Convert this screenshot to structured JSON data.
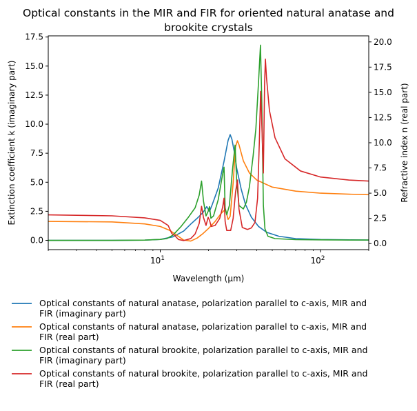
{
  "chart_data": {
    "type": "line",
    "title_lines": [
      "Optical constants in the MIR and FIR for oriented natural anatase and",
      "brookite crystals"
    ],
    "xlabel": "Wavelength (μm)",
    "ylabel_left": "Extinction coefficient k (imaginary part)",
    "ylabel_right": "Refractive index n (real part)",
    "x_scale": "log",
    "xlim": [
      2,
      200
    ],
    "ylim_left": [
      -0.8,
      17.6
    ],
    "ylim_right": [
      -0.6,
      20.6
    ],
    "x_ticks": [
      10,
      100
    ],
    "x_tick_labels": [
      "10^1",
      "10^2"
    ],
    "y_ticks_left": [
      "0.0",
      "2.5",
      "5.0",
      "7.5",
      "10.0",
      "12.5",
      "15.0",
      "17.5"
    ],
    "y_ticks_right": [
      "0.0",
      "2.5",
      "5.0",
      "7.5",
      "10.0",
      "12.5",
      "15.0",
      "17.5",
      "20.0"
    ],
    "grid": false,
    "legend_position": "below-plot",
    "series": [
      {
        "name": "Optical constants of natural anatase, polarization parallel to c-axis, MIR and FIR (imaginary part)",
        "axis": "left",
        "color": "#1f77b4",
        "points": [
          [
            2,
            0.0
          ],
          [
            5,
            0.0
          ],
          [
            8,
            0.02
          ],
          [
            10,
            0.08
          ],
          [
            12,
            0.3
          ],
          [
            14,
            0.8
          ],
          [
            15.5,
            1.4
          ],
          [
            17,
            1.9
          ],
          [
            18.5,
            2.4
          ],
          [
            19.5,
            2.9
          ],
          [
            20.3,
            2.5
          ],
          [
            21,
            3.0
          ],
          [
            23,
            4.5
          ],
          [
            25,
            6.8
          ],
          [
            26.5,
            8.6
          ],
          [
            27.3,
            9.1
          ],
          [
            28,
            8.7
          ],
          [
            29,
            7.6
          ],
          [
            30,
            6.2
          ],
          [
            32,
            4.4
          ],
          [
            34,
            3.1
          ],
          [
            37,
            2.0
          ],
          [
            41,
            1.2
          ],
          [
            46,
            0.7
          ],
          [
            55,
            0.35
          ],
          [
            70,
            0.15
          ],
          [
            100,
            0.07
          ],
          [
            150,
            0.04
          ],
          [
            200,
            0.03
          ]
        ]
      },
      {
        "name": "Optical constants of natural anatase, polarization parallel to c-axis, MIR and FIR (real part)",
        "axis": "right",
        "color": "#ff7f0e",
        "points": [
          [
            2,
            2.2
          ],
          [
            5,
            2.15
          ],
          [
            8,
            1.95
          ],
          [
            10,
            1.7
          ],
          [
            11.5,
            1.3
          ],
          [
            12.5,
            0.9
          ],
          [
            14,
            0.35
          ],
          [
            15.5,
            0.25
          ],
          [
            17,
            0.55
          ],
          [
            18.5,
            1.0
          ],
          [
            20,
            1.5
          ],
          [
            22,
            2.2
          ],
          [
            24,
            3.0
          ],
          [
            25.5,
            3.4
          ],
          [
            26.5,
            2.4
          ],
          [
            27.3,
            2.7
          ],
          [
            28.5,
            6.0
          ],
          [
            29.5,
            9.6
          ],
          [
            30.3,
            10.2
          ],
          [
            31,
            9.8
          ],
          [
            33,
            8.2
          ],
          [
            36,
            7.0
          ],
          [
            40,
            6.3
          ],
          [
            50,
            5.6
          ],
          [
            70,
            5.2
          ],
          [
            100,
            5.0
          ],
          [
            150,
            4.9
          ],
          [
            200,
            4.85
          ]
        ]
      },
      {
        "name": "Optical constants of natural brookite, polarization parallel to c-axis, MIR and FIR (imaginary part)",
        "axis": "left",
        "color": "#2ca02c",
        "points": [
          [
            2,
            0.0
          ],
          [
            5,
            0.0
          ],
          [
            8,
            0.02
          ],
          [
            10,
            0.08
          ],
          [
            11,
            0.15
          ],
          [
            12,
            0.45
          ],
          [
            13.5,
            1.2
          ],
          [
            15,
            2.0
          ],
          [
            16.5,
            2.8
          ],
          [
            17.5,
            3.9
          ],
          [
            18.1,
            5.1
          ],
          [
            18.6,
            3.4
          ],
          [
            19.3,
            2.1
          ],
          [
            19.9,
            2.5
          ],
          [
            20.3,
            2.9
          ],
          [
            20.7,
            1.9
          ],
          [
            21.5,
            2.1
          ],
          [
            23,
            3.5
          ],
          [
            24.5,
            5.7
          ],
          [
            25,
            6.3
          ],
          [
            25.4,
            2.8
          ],
          [
            26,
            2.2
          ],
          [
            27,
            3.0
          ],
          [
            28.2,
            6.0
          ],
          [
            29.3,
            8.2
          ],
          [
            30,
            5.0
          ],
          [
            31,
            3.0
          ],
          [
            33,
            2.7
          ],
          [
            34.5,
            3.3
          ],
          [
            36,
            4.6
          ],
          [
            38,
            7.3
          ],
          [
            39.5,
            9.6
          ],
          [
            41,
            13.5
          ],
          [
            42.2,
            16.8
          ],
          [
            43,
            12.0
          ],
          [
            44,
            3.0
          ],
          [
            45,
            1.0
          ],
          [
            47,
            0.35
          ],
          [
            52,
            0.15
          ],
          [
            70,
            0.06
          ],
          [
            100,
            0.04
          ],
          [
            150,
            0.03
          ],
          [
            200,
            0.03
          ]
        ]
      },
      {
        "name": "Optical constants of natural brookite, polarization parallel to c-axis, MIR and FIR (real part)",
        "axis": "right",
        "color": "#d62728",
        "points": [
          [
            2,
            2.85
          ],
          [
            5,
            2.75
          ],
          [
            8,
            2.55
          ],
          [
            10,
            2.3
          ],
          [
            11.2,
            1.8
          ],
          [
            11.8,
            1.0
          ],
          [
            12.3,
            0.8
          ],
          [
            13,
            0.4
          ],
          [
            14,
            0.3
          ],
          [
            15.5,
            0.5
          ],
          [
            16.5,
            0.95
          ],
          [
            17.5,
            2.0
          ],
          [
            18.1,
            3.7
          ],
          [
            18.6,
            2.6
          ],
          [
            19.3,
            1.8
          ],
          [
            19.9,
            2.6
          ],
          [
            20.3,
            2.3
          ],
          [
            20.8,
            1.7
          ],
          [
            22,
            1.8
          ],
          [
            23.5,
            2.5
          ],
          [
            24.5,
            3.6
          ],
          [
            25,
            4.5
          ],
          [
            25.4,
            2.2
          ],
          [
            26,
            1.3
          ],
          [
            27.5,
            1.3
          ],
          [
            28.5,
            2.5
          ],
          [
            29.5,
            5.1
          ],
          [
            30.3,
            6.3
          ],
          [
            31,
            3.4
          ],
          [
            32.5,
            1.6
          ],
          [
            35,
            1.4
          ],
          [
            37,
            1.55
          ],
          [
            39,
            2.1
          ],
          [
            40.5,
            4.5
          ],
          [
            41.5,
            10.0
          ],
          [
            42.3,
            15.1
          ],
          [
            43.2,
            11.0
          ],
          [
            44,
            7.0
          ],
          [
            44.8,
            16.0
          ],
          [
            45.3,
            18.3
          ],
          [
            46,
            16.5
          ],
          [
            48,
            13.2
          ],
          [
            52,
            10.5
          ],
          [
            60,
            8.4
          ],
          [
            75,
            7.2
          ],
          [
            100,
            6.6
          ],
          [
            150,
            6.3
          ],
          [
            200,
            6.2
          ]
        ]
      }
    ]
  }
}
